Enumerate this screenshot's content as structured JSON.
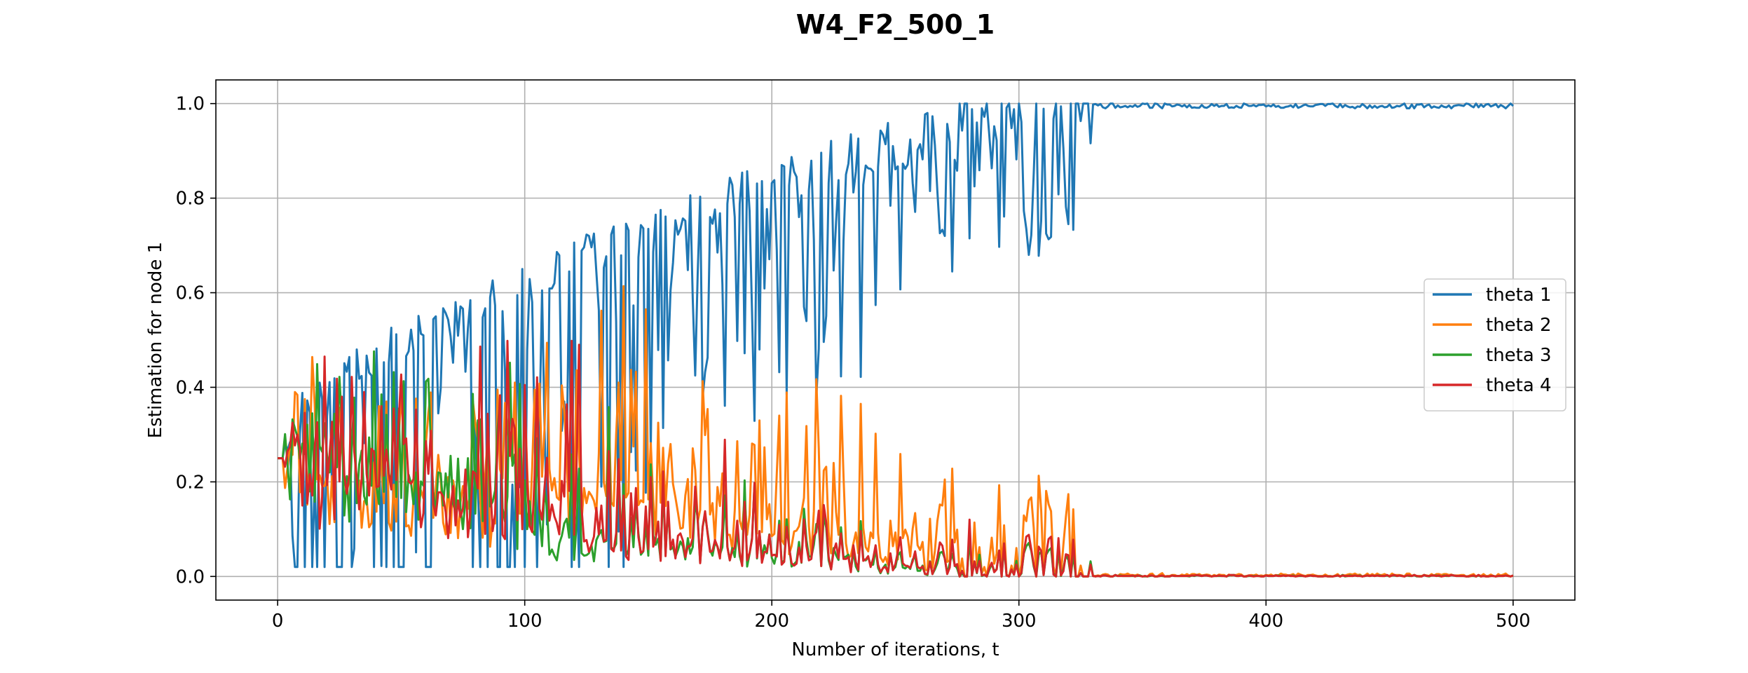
{
  "chart_data": {
    "type": "line",
    "title": "W4_F2_500_1",
    "xlabel": "Number of iterations, t",
    "ylabel": "Estimation for node 1",
    "xlim": [
      -25,
      525
    ],
    "ylim": [
      -0.05,
      1.05
    ],
    "xticks": [
      0,
      100,
      200,
      300,
      400,
      500
    ],
    "xtick_labels": [
      "0",
      "100",
      "200",
      "300",
      "400",
      "500"
    ],
    "yticks": [
      0.0,
      0.2,
      0.4,
      0.6,
      0.8,
      1.0
    ],
    "ytick_labels": [
      "0.0",
      "0.2",
      "0.4",
      "0.6",
      "0.8",
      "1.0"
    ],
    "grid": true,
    "legend_position": "right",
    "series": [
      {
        "name": "theta 1",
        "color": "#1f77b4",
        "values": []
      },
      {
        "name": "theta 2",
        "color": "#ff7f0e",
        "values": []
      },
      {
        "name": "theta 3",
        "color": "#2ca02c",
        "values": []
      },
      {
        "name": "theta 4",
        "color": "#d62728",
        "values": []
      }
    ]
  }
}
